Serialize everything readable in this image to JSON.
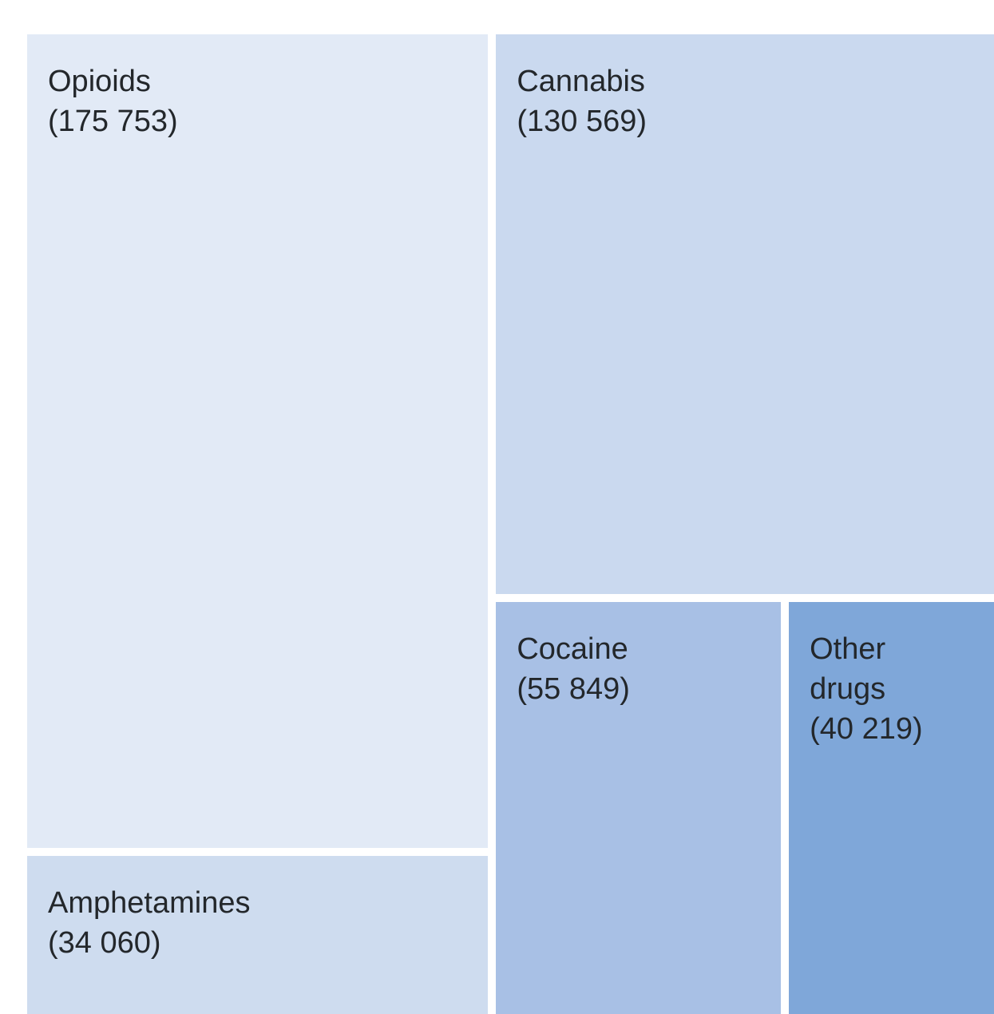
{
  "chart_data": {
    "type": "treemap",
    "title": "",
    "items": [
      {
        "name": "Opioids",
        "name_lines": [
          "Opioids"
        ],
        "value": 175753,
        "value_label": "(175 753)",
        "color": "#e2eaf6"
      },
      {
        "name": "Amphetamines",
        "name_lines": [
          "Amphetamines"
        ],
        "value": 34060,
        "value_label": "(34 060)",
        "color": "#cedcef"
      },
      {
        "name": "Cannabis",
        "name_lines": [
          "Cannabis"
        ],
        "value": 130569,
        "value_label": "(130 569)",
        "color": "#cad9ef"
      },
      {
        "name": "Cocaine",
        "name_lines": [
          "Cocaine"
        ],
        "value": 55849,
        "value_label": "(55 849)",
        "color": "#a8c0e5"
      },
      {
        "name": "Other drugs",
        "name_lines": [
          "Other",
          "drugs"
        ],
        "value": 40219,
        "value_label": "(40 219)",
        "color": "#7fa7d9"
      }
    ]
  }
}
